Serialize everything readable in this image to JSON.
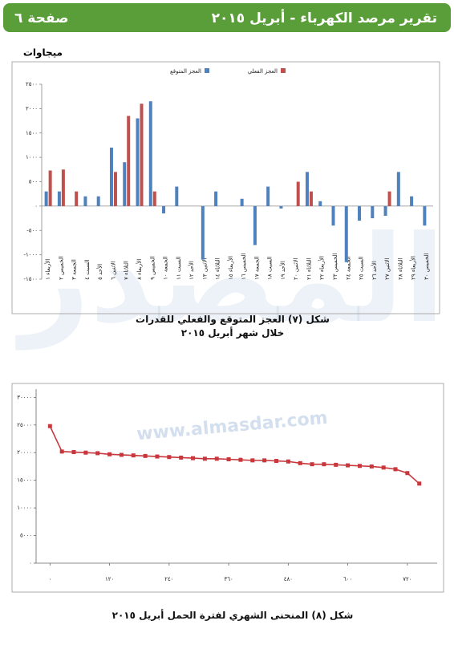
{
  "header": {
    "title": "تقرير مرصد الكهرباء - أبريل ٢٠١٥",
    "page": "صفحة ٦"
  },
  "watermark": {
    "logo": "المصدر",
    "url": "www.almasdar.com"
  },
  "chart_data": [
    {
      "type": "bar",
      "y_label": "ميجاوات",
      "caption": [
        "شكل (٧) العجز المتوقع والفعلي للقدرات",
        "خلال شهر أبريل ٢٠١٥"
      ],
      "categories": [
        "الأربعاء ١",
        "الخميس ٢",
        "الجمعة ٣",
        "السبت ٤",
        "الأحد ٥",
        "الاثنين ٦",
        "الثلاثاء ٧",
        "الأربعاء ٨",
        "الخميس ٩",
        "الجمعة ١٠",
        "السبت ١١",
        "الأحد ١٢",
        "الاثنين ١٣",
        "الثلاثاء ١٤",
        "الأربعاء ١٥",
        "الخميس ١٦",
        "الجمعة ١٧",
        "السبت ١٨",
        "الأحد ١٩",
        "الاثنين ٢٠",
        "الثلاثاء ٢١",
        "الأربعاء ٢٢",
        "الخميس ٢٣",
        "الجمعة ٢٤",
        "السبت ٢٥",
        "الأحد ٢٦",
        "الاثنين ٢٧",
        "الثلاثاء ٢٨",
        "الأربعاء ٢٩",
        "الخميس ٣٠"
      ],
      "series": [
        {
          "name": "العجز المتوقع",
          "color": "#4f81bd",
          "values": [
            300,
            300,
            0,
            200,
            200,
            1200,
            900,
            1800,
            2150,
            -150,
            400,
            0,
            -1100,
            300,
            0,
            150,
            -800,
            400,
            -50,
            0,
            700,
            100,
            -400,
            -1150,
            -300,
            -250,
            -200,
            700,
            200,
            -400
          ]
        },
        {
          "name": "العجز الفعلي",
          "color": "#c0504d",
          "values": [
            730,
            750,
            300,
            0,
            0,
            700,
            1850,
            2100,
            300,
            0,
            0,
            0,
            0,
            0,
            0,
            0,
            0,
            0,
            0,
            500,
            300,
            0,
            0,
            0,
            0,
            0,
            300,
            0,
            0,
            0
          ]
        }
      ],
      "ylim": [
        -1500,
        2500
      ],
      "yticks": [
        {
          "value": -1500,
          "label": "-١٥٠٠"
        },
        {
          "value": -1000,
          "label": "-١٠٠٠"
        },
        {
          "value": -500,
          "label": "-٥٠٠"
        },
        {
          "value": 0,
          "label": "٠"
        },
        {
          "value": 500,
          "label": "٥٠٠"
        },
        {
          "value": 1000,
          "label": "١٠٠٠"
        },
        {
          "value": 1500,
          "label": "١٥٠٠"
        },
        {
          "value": 2000,
          "label": "٢٠٠٠"
        },
        {
          "value": 2500,
          "label": "٢٥٠٠"
        }
      ],
      "grid": false,
      "legend": "top"
    },
    {
      "type": "line",
      "caption": [
        "شكل (٨) المنحنى الشهري لفترة الحمل أبريل ٢٠١٥"
      ],
      "x": [
        0,
        24,
        48,
        72,
        96,
        120,
        144,
        168,
        192,
        216,
        240,
        264,
        288,
        312,
        336,
        360,
        384,
        408,
        432,
        456,
        480,
        504,
        528,
        552,
        576,
        600,
        624,
        648,
        672,
        696,
        720,
        744
      ],
      "series": [
        {
          "color": "#c8373c",
          "values": [
            24800,
            20200,
            20100,
            20000,
            19900,
            19700,
            19600,
            19500,
            19400,
            19300,
            19200,
            19100,
            19000,
            18900,
            18900,
            18800,
            18700,
            18600,
            18600,
            18500,
            18400,
            18100,
            17900,
            17900,
            17800,
            17700,
            17600,
            17500,
            17300,
            17000,
            16300,
            14400
          ]
        }
      ],
      "xlim": [
        -28,
        780
      ],
      "xticks": [
        {
          "value": 0,
          "label": "٠"
        },
        {
          "value": 120,
          "label": "١٢٠"
        },
        {
          "value": 240,
          "label": "٢٤٠"
        },
        {
          "value": 360,
          "label": "٣٦٠"
        },
        {
          "value": 480,
          "label": "٤٨٠"
        },
        {
          "value": 600,
          "label": "٦٠٠"
        },
        {
          "value": 720,
          "label": "٧٢٠"
        }
      ],
      "ylim": [
        0,
        31500
      ],
      "yticks": [
        {
          "value": 0,
          "label": "٠"
        },
        {
          "value": 5000,
          "label": "٥٠٠٠"
        },
        {
          "value": 10000,
          "label": "١٠٠٠٠"
        },
        {
          "value": 15000,
          "label": "١٥٠٠٠"
        },
        {
          "value": 20000,
          "label": "٢٠٠٠٠"
        },
        {
          "value": 25000,
          "label": "٢٥٠٠٠"
        },
        {
          "value": 30000,
          "label": "٣٠٠٠٠"
        }
      ],
      "grid": false
    }
  ]
}
